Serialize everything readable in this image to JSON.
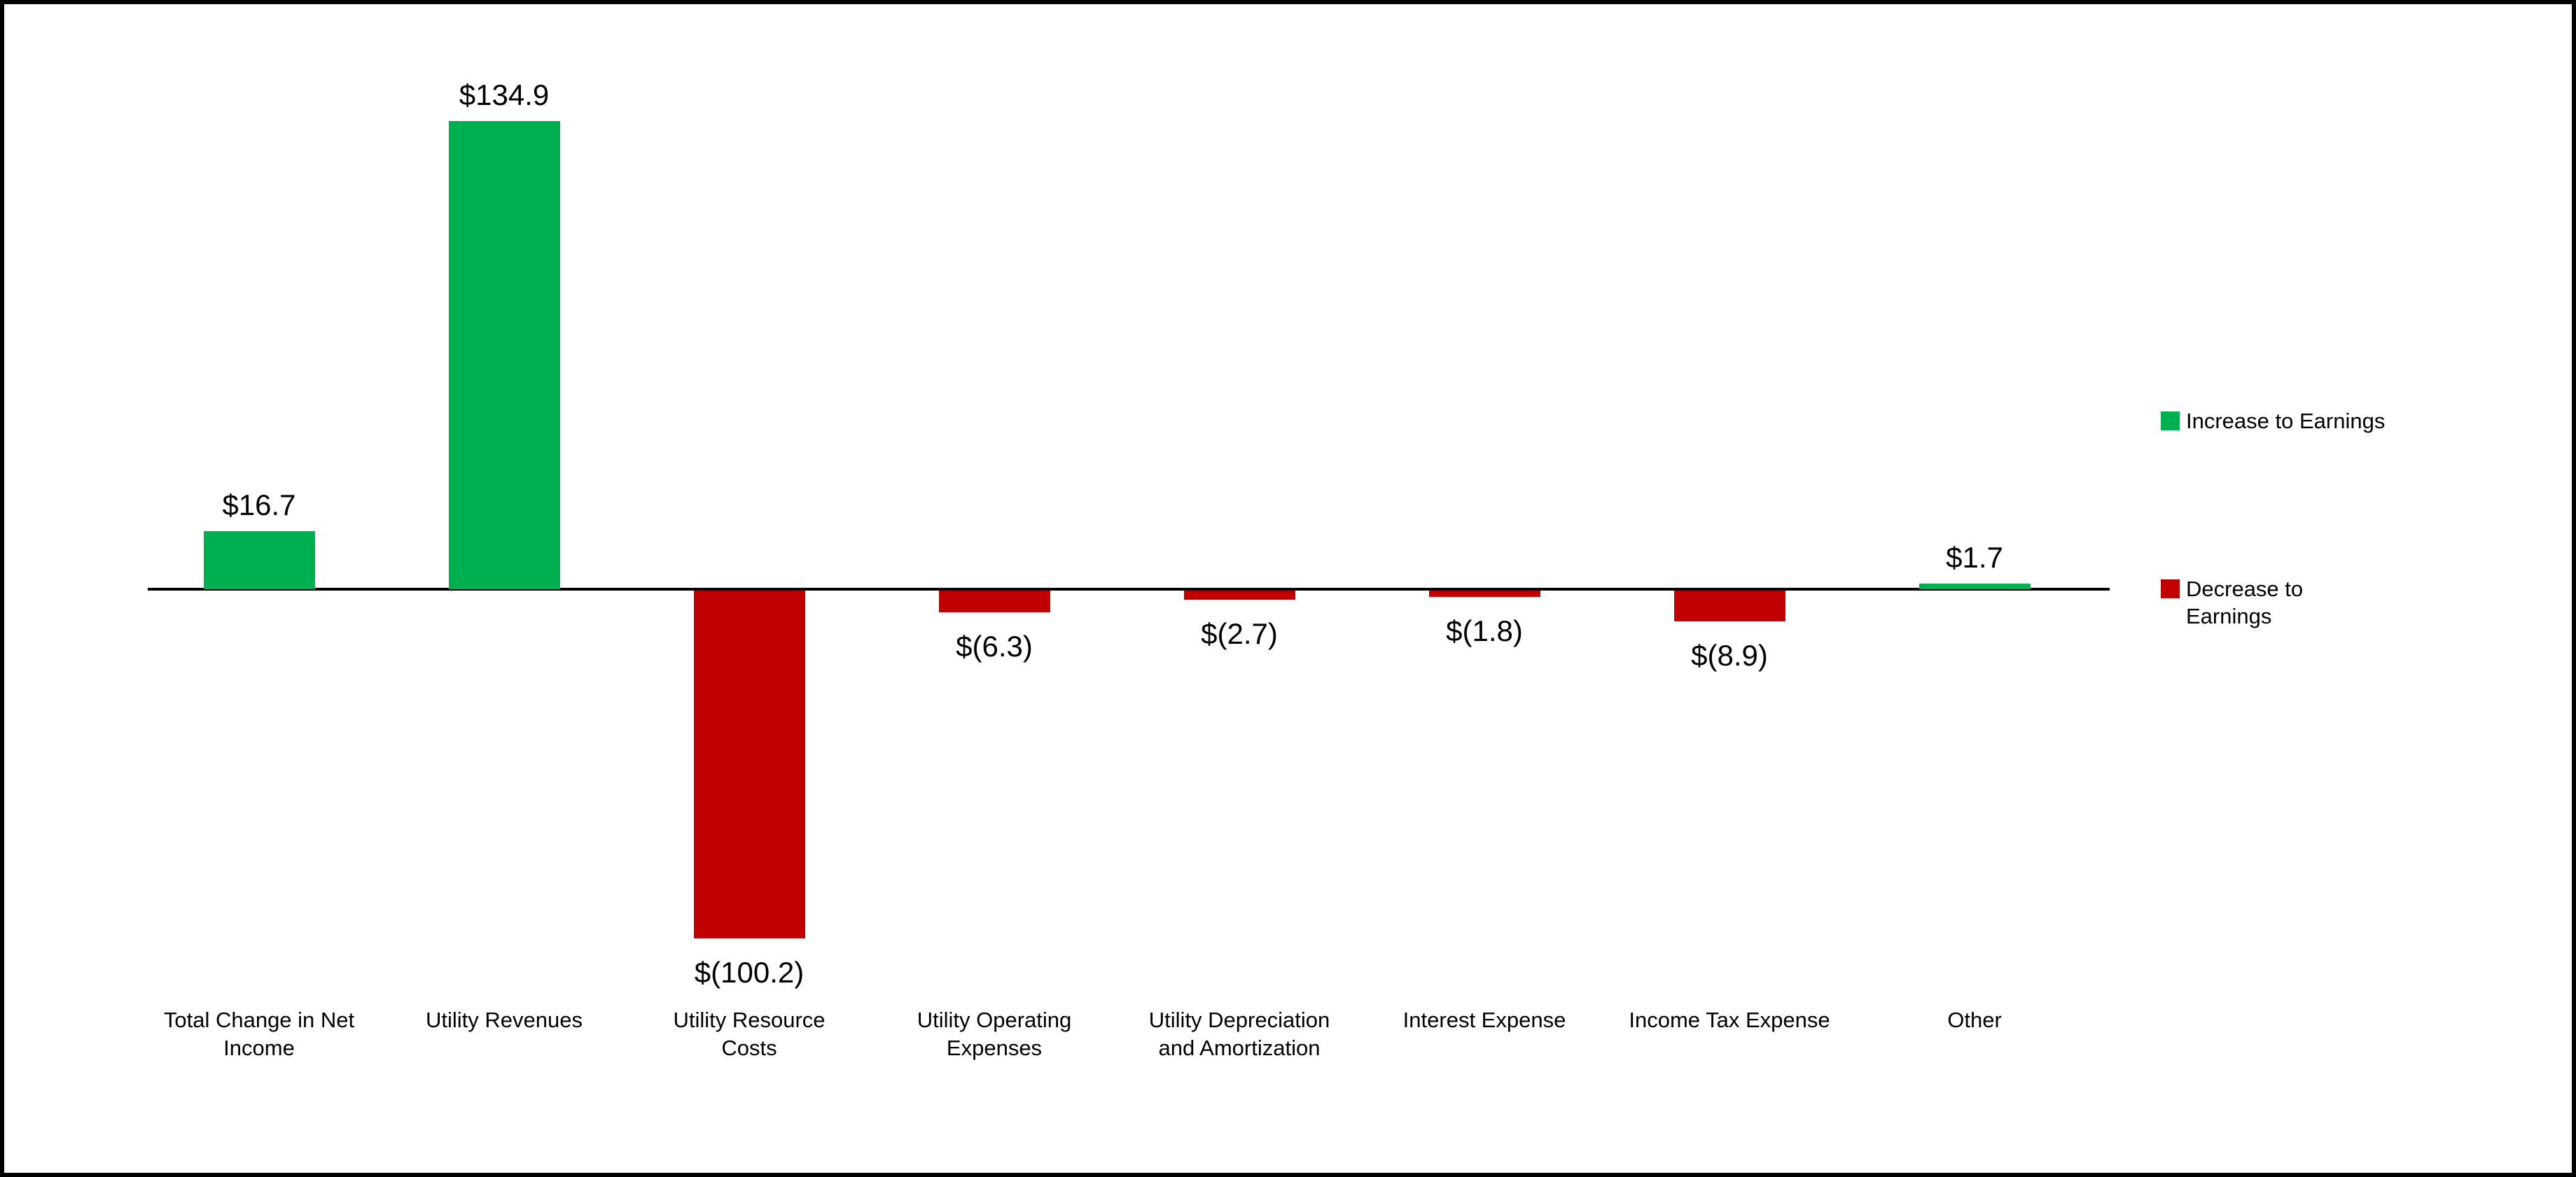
{
  "chart_data": {
    "type": "bar",
    "title": "",
    "xlabel": "",
    "ylabel": "",
    "categories": [
      "Total Change in Net\nIncome",
      "Utility Revenues",
      "Utility Resource\nCosts",
      "Utility Operating\nExpenses",
      "Utility Depreciation\nand Amortization",
      "Interest Expense",
      "Income Tax Expense",
      "Other"
    ],
    "values": [
      16.7,
      134.9,
      -100.2,
      -6.3,
      -2.7,
      -1.8,
      -8.9,
      1.7
    ],
    "value_labels": [
      "$16.7",
      "$134.9",
      "$(100.2)",
      "$(6.3)",
      "$(2.7)",
      "$(1.8)",
      "$(8.9)",
      "$1.7"
    ],
    "colors": {
      "increase": "#00B050",
      "decrease": "#C00000",
      "axis": "#000000"
    },
    "legend": {
      "position": "right",
      "entries": [
        {
          "label": "Increase to Earnings",
          "color": "#00B050"
        },
        {
          "label": "Decrease to\nEarnings",
          "color": "#C00000"
        }
      ]
    },
    "ylim": [
      -110,
      140
    ],
    "gridlines": false,
    "y_axis_visible": false,
    "x_axis_line": true
  }
}
